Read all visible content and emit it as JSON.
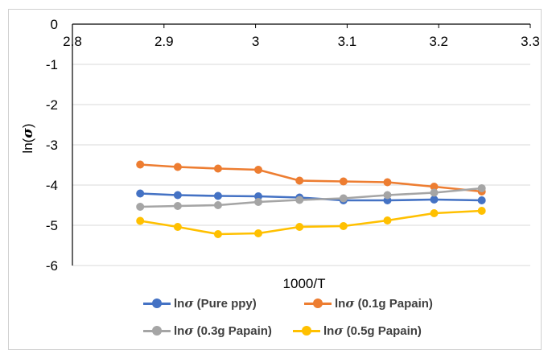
{
  "chart_data": {
    "type": "line",
    "title": "",
    "xlabel": "1000/T",
    "ylabel_prefix": "ln(",
    "ylabel_symbol": "σ",
    "ylabel_suffix": ")",
    "xlim": [
      2.8,
      3.3
    ],
    "ylim": [
      -6,
      0
    ],
    "x_ticks": [
      2.8,
      2.9,
      3.0,
      3.1,
      3.2,
      3.3
    ],
    "x_tick_labels": [
      "2.8",
      "2.9",
      "3",
      "3.1",
      "3.2",
      "3.3"
    ],
    "y_ticks": [
      0,
      -1,
      -2,
      -3,
      -4,
      -5,
      -6
    ],
    "y_tick_labels": [
      "0",
      "-1",
      "-2",
      "-3",
      "-4",
      "-5",
      "-6"
    ],
    "grid": "horizontal",
    "legend_position": "bottom",
    "x": [
      2.874,
      2.915,
      2.959,
      3.003,
      3.048,
      3.096,
      3.144,
      3.195,
      3.247
    ],
    "series": [
      {
        "name_prefix": "ln",
        "name_symbol": "σ",
        "name_suffix": " (Pure ppy)",
        "color": "#4472C4",
        "values": [
          -4.21,
          -4.25,
          -4.27,
          -4.28,
          -4.31,
          -4.38,
          -4.38,
          -4.36,
          -4.38
        ]
      },
      {
        "name_prefix": "ln",
        "name_symbol": "σ",
        "name_suffix": " (0.1g Papain)",
        "color": "#ED7D31",
        "values": [
          -3.49,
          -3.55,
          -3.59,
          -3.62,
          -3.89,
          -3.91,
          -3.93,
          -4.04,
          -4.16
        ]
      },
      {
        "name_prefix": "ln",
        "name_symbol": "σ",
        "name_suffix": " (0.3g Papain)",
        "color": "#A5A5A5",
        "values": [
          -4.54,
          -4.52,
          -4.5,
          -4.42,
          -4.37,
          -4.33,
          -4.25,
          -4.19,
          -4.08
        ]
      },
      {
        "name_prefix": "ln",
        "name_symbol": "σ",
        "name_suffix": " (0.5g Papain)",
        "color": "#FFC000",
        "values": [
          -4.89,
          -5.04,
          -5.22,
          -5.2,
          -5.04,
          -5.02,
          -4.88,
          -4.7,
          -4.64
        ]
      }
    ]
  }
}
